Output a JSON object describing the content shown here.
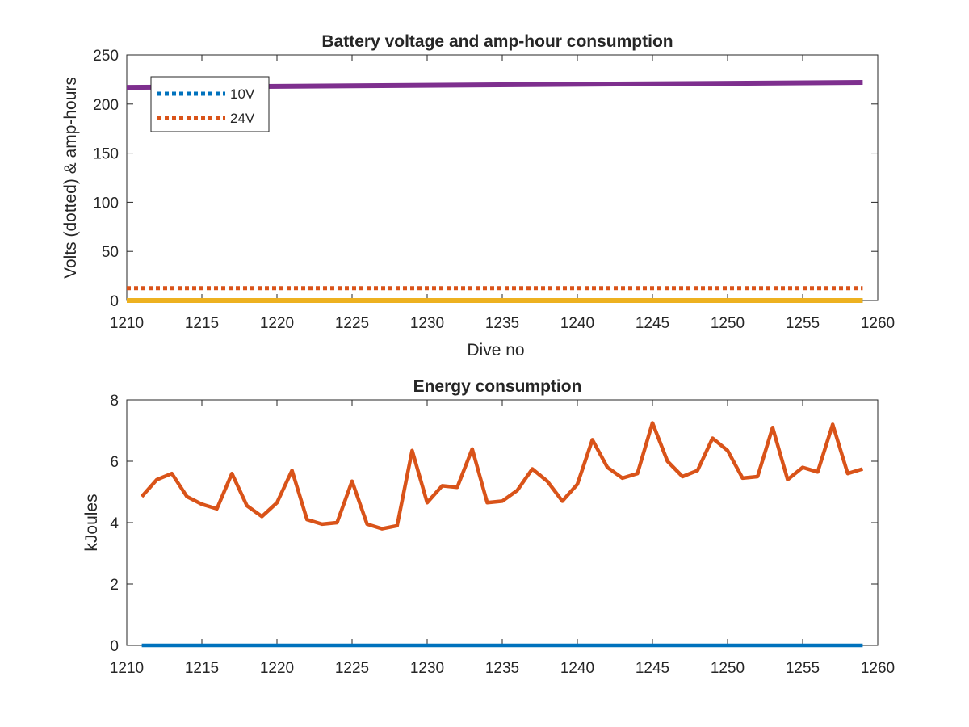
{
  "chart_data": [
    {
      "type": "line",
      "title": "Battery voltage and amp-hour consumption",
      "xlabel": "Dive no",
      "ylabel": "Volts (dotted) & amp-hours",
      "xlim": [
        1210,
        1260
      ],
      "ylim": [
        0,
        250
      ],
      "x_ticks": [
        "1210",
        "1215",
        "1220",
        "1225",
        "1230",
        "1235",
        "1240",
        "1245",
        "1250",
        "1255",
        "1260"
      ],
      "y_ticks": [
        "0",
        "50",
        "100",
        "150",
        "200",
        "250"
      ],
      "grid": false,
      "legend_position": "top-left",
      "series": [
        {
          "name": "10V",
          "style": "dotted",
          "color": "#0072BD",
          "x": [
            1210,
            1259
          ],
          "values": [
            0,
            0
          ]
        },
        {
          "name": "24V",
          "style": "dotted",
          "color": "#D95319",
          "x": [
            1210,
            1259
          ],
          "values": [
            12.5,
            12.5
          ]
        },
        {
          "style": "solid",
          "color": "#7E2F8E",
          "x": [
            1210,
            1259
          ],
          "values": [
            217,
            222
          ]
        },
        {
          "style": "solid",
          "color": "#EDB120",
          "x": [
            1210,
            1259
          ],
          "values": [
            0,
            0
          ]
        }
      ]
    },
    {
      "type": "line",
      "title": "Energy consumption",
      "xlabel": "",
      "ylabel": "kJoules",
      "xlim": [
        1210,
        1260
      ],
      "ylim": [
        0,
        8
      ],
      "x_ticks": [
        "1210",
        "1215",
        "1220",
        "1225",
        "1230",
        "1235",
        "1240",
        "1245",
        "1250",
        "1255",
        "1260"
      ],
      "y_ticks": [
        "0",
        "2",
        "4",
        "6",
        "8"
      ],
      "grid": false,
      "series": [
        {
          "style": "solid",
          "color": "#D95319",
          "x": [
            1211,
            1212,
            1213,
            1214,
            1215,
            1216,
            1217,
            1218,
            1219,
            1220,
            1221,
            1222,
            1223,
            1224,
            1225,
            1226,
            1227,
            1228,
            1229,
            1230,
            1231,
            1232,
            1233,
            1234,
            1235,
            1236,
            1237,
            1238,
            1239,
            1240,
            1241,
            1242,
            1243,
            1244,
            1245,
            1246,
            1247,
            1248,
            1249,
            1250,
            1251,
            1252,
            1253,
            1254,
            1255,
            1256,
            1257,
            1258,
            1259
          ],
          "values": [
            4.85,
            5.4,
            5.6,
            4.85,
            4.6,
            4.45,
            5.6,
            4.55,
            4.2,
            4.65,
            5.7,
            4.1,
            3.95,
            4.0,
            5.35,
            3.95,
            3.8,
            3.9,
            6.35,
            4.65,
            5.2,
            5.15,
            6.4,
            4.65,
            4.7,
            5.05,
            5.75,
            5.35,
            4.7,
            5.25,
            6.7,
            5.8,
            5.45,
            5.6,
            7.25,
            6.0,
            5.5,
            5.7,
            6.75,
            6.35,
            5.45,
            5.5,
            7.1,
            5.4,
            5.8,
            5.65,
            7.2,
            5.6,
            5.75
          ]
        },
        {
          "style": "solid",
          "color": "#0072BD",
          "x": [
            1211,
            1259
          ],
          "values": [
            0,
            0
          ]
        }
      ]
    }
  ]
}
